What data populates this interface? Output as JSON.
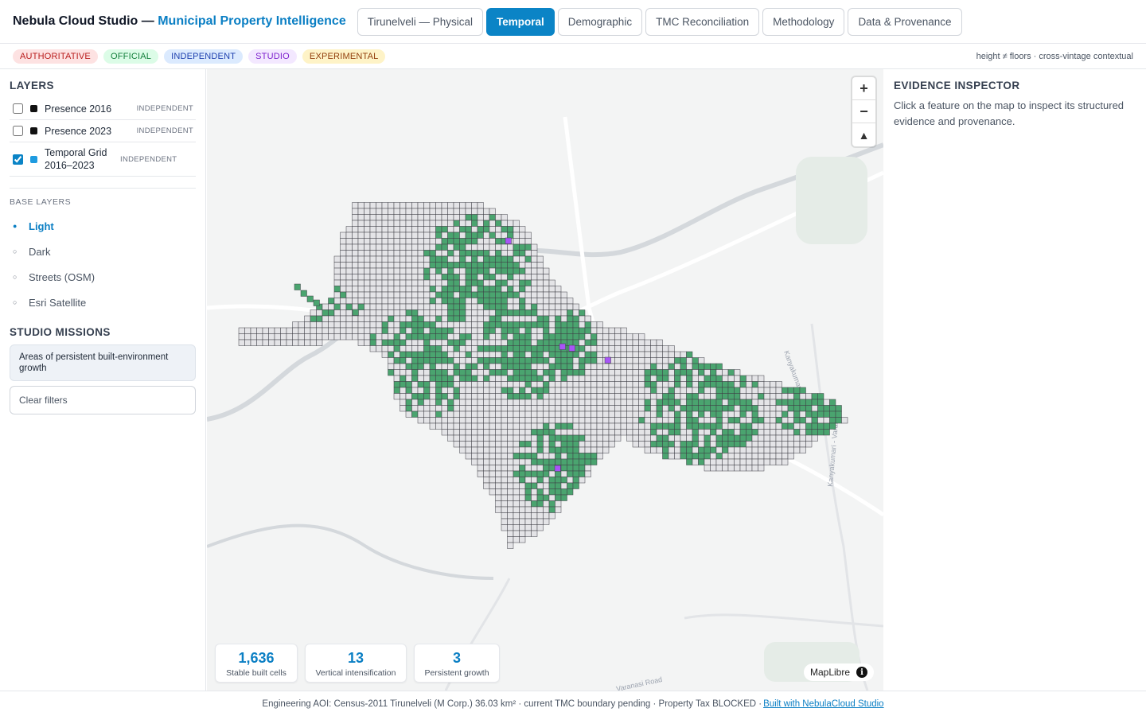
{
  "header": {
    "brand_main": "Nebula Cloud Studio —",
    "brand_accent": "Municipal Property Intelligence",
    "tabs": [
      {
        "label": "Tirunelveli — Physical",
        "active": false
      },
      {
        "label": "Temporal",
        "active": true
      },
      {
        "label": "Demographic",
        "active": false
      },
      {
        "label": "TMC Reconciliation",
        "active": false
      },
      {
        "label": "Methodology",
        "active": false
      },
      {
        "label": "Data & Provenance",
        "active": false
      }
    ]
  },
  "badges": {
    "authoritative": "AUTHORITATIVE",
    "official": "OFFICIAL",
    "independent": "INDEPENDENT",
    "studio": "STUDIO",
    "experimental": "EXPERIMENTAL",
    "note": "height ≠ floors · cross-vintage contextual"
  },
  "layers": {
    "title": "LAYERS",
    "items": [
      {
        "name": "Presence 2016",
        "tag": "INDEPENDENT",
        "checked": false,
        "color": "#111111"
      },
      {
        "name": "Presence 2023",
        "tag": "INDEPENDENT",
        "checked": false,
        "color": "#111111"
      },
      {
        "name": "Temporal Grid 2016–2023",
        "tag": "INDEPENDENT",
        "checked": true,
        "color": "#1e9be0"
      }
    ]
  },
  "base_layers": {
    "title": "BASE LAYERS",
    "items": [
      {
        "label": "Light",
        "active": true
      },
      {
        "label": "Dark",
        "active": false
      },
      {
        "label": "Streets (OSM)",
        "active": false
      },
      {
        "label": "Esri Satellite",
        "active": false
      }
    ]
  },
  "missions": {
    "title": "STUDIO MISSIONS",
    "mission": "Areas of persistent built-environment growth",
    "clear": "Clear filters"
  },
  "map": {
    "zoom_in": "+",
    "zoom_out": "−",
    "compass": "▲",
    "attribution": "MapLibre",
    "info": "i",
    "road_labels": [
      "Kanyakumari",
      "Kanyakumari - Varanasi",
      "Varanasi Road"
    ],
    "colors": {
      "grid_fill": "#e4e4e7",
      "grid_stroke": "#3f3f46",
      "growth": "#4aa46f",
      "vertical": "#a855f7"
    }
  },
  "stats": [
    {
      "value": "1,636",
      "label": "Stable built cells"
    },
    {
      "value": "13",
      "label": "Vertical intensification"
    },
    {
      "value": "3",
      "label": "Persistent growth"
    }
  ],
  "inspector": {
    "title": "EVIDENCE INSPECTOR",
    "text": "Click a feature on the map to inspect its structured evidence and provenance."
  },
  "footer": {
    "text": "Engineering AOI: Census-2011 Tirunelveli (M Corp.) 36.03 km² · current TMC boundary pending · Property Tax BLOCKED ·",
    "link": "Built with NebulaCloud Studio"
  }
}
